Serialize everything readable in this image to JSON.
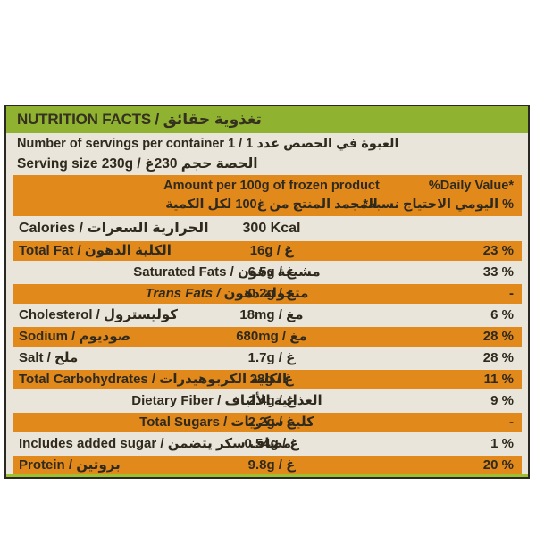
{
  "label": {
    "title": "NUTRITION FACTS / حقائق‎ تغذوية",
    "servings_line": "Number of servings per container 1 / 1 عدد‎ الحصص‎ في‎ العبوة",
    "serving_size_line": "Serving size 230g / غ‎230 حجم‎ الحصة"
  },
  "table": {
    "amount_header_en": "Amount per 100g of frozen product",
    "amount_header_ar": "الكمية‎ لكل‎ 100غ‎ من‎ المنتج‎ المجمد",
    "dv_header_en": "%Daily Value*",
    "dv_header_ar": "*نسبة‎ الاحتياج‎ اليومي‎ %",
    "rows": [
      {
        "en": "Calories / ",
        "ar": "السعرات‎ الحرارية",
        "amount": "300 Kcal",
        "dv": ""
      },
      {
        "en": "Total Fat / ",
        "ar": "الدهون‎ الكلية",
        "amount": "16g / غ",
        "dv": "23 %"
      },
      {
        "en": "Saturated Fats / ",
        "ar": "دهون‎ مشبعة",
        "amount": "6.5g / غ",
        "dv": "33 %"
      },
      {
        "en": "Trans Fats / ",
        "ar": "دهون‎ متحولة",
        "amount": "0.2g / غ",
        "dv": "-"
      },
      {
        "en": "Cholesterol / ",
        "ar": "كوليسترول",
        "amount": "18mg / مغ",
        "dv": "6 %"
      },
      {
        "en": "Sodium / ",
        "ar": "صوديوم",
        "amount": "680mg / مغ",
        "dv": "28 %"
      },
      {
        "en": "Salt / ",
        "ar": "ملح",
        "amount": "1.7g / غ",
        "dv": "28 %"
      },
      {
        "en": "Total Carbohydrates / ",
        "ar": "الكربوهيدرات‎ الكلية",
        "amount": "28g / غ",
        "dv": "11 %"
      },
      {
        "en": "Dietary Fiber / ",
        "ar": "الألياف‎ الغذائية",
        "amount": "2.4g / غ",
        "dv": "9 %"
      },
      {
        "en": "Total Sugars / ",
        "ar": "سكريات‎ كلية",
        "amount": "2.2g / غ",
        "dv": "-"
      },
      {
        "en": "Includes added sugar / ",
        "ar": "يتضمن‎ سكر‎ مضاف",
        "amount": "0.54g / غ",
        "dv": "1 %"
      },
      {
        "en": "Protein / ",
        "ar": "بروتين",
        "amount": "9.8g / غ",
        "dv": "20 %"
      }
    ]
  },
  "colors": {
    "header_green": "#8FB231",
    "band_orange": "#E2891B",
    "background_beige": "#EAE5DA",
    "text_dark": "#2F2A1D",
    "edge_dark": "#2A2822",
    "bottom_line_green": "#9DC02F"
  }
}
